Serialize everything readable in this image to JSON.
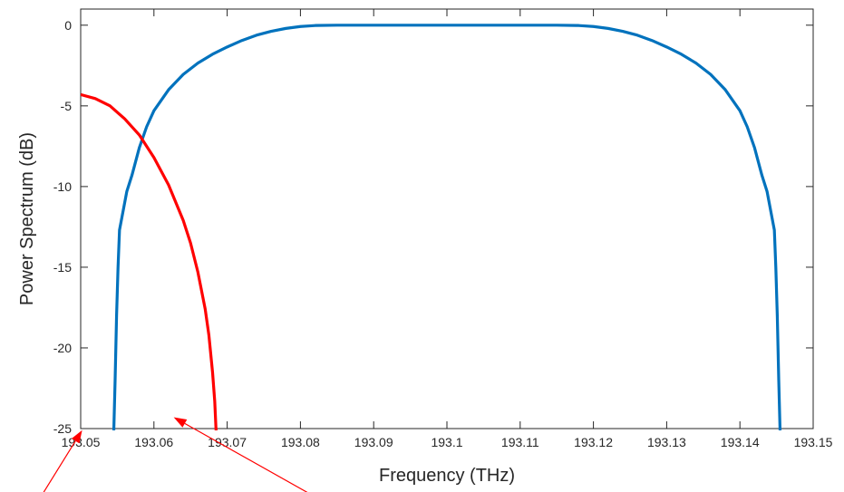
{
  "chart_data": {
    "type": "line",
    "xlabel": "Frequency (THz)",
    "ylabel": "Power Spectrum (dB)",
    "xlim": [
      193.05,
      193.15
    ],
    "ylim": [
      -25,
      1
    ],
    "xticks": [
      193.05,
      193.06,
      193.07,
      193.08,
      193.09,
      193.1,
      193.11,
      193.12,
      193.13,
      193.14,
      193.15
    ],
    "xtick_labels": [
      "193.05",
      "193.06",
      "193.07",
      "193.08",
      "193.09",
      "193.1",
      "193.11",
      "193.12",
      "193.13",
      "193.14",
      "193.15"
    ],
    "yticks": [
      0,
      -5,
      -10,
      -15,
      -20,
      -25
    ],
    "ytick_labels": [
      "0",
      "-5",
      "-10",
      "-15",
      "-20",
      "-25"
    ],
    "grid": false,
    "box": true,
    "series": [
      {
        "color": "#0072BD",
        "points": [
          [
            193.0545,
            -25.5
          ],
          [
            193.0547,
            -22
          ],
          [
            193.0549,
            -18
          ],
          [
            193.0551,
            -15
          ],
          [
            193.0553,
            -12.7
          ],
          [
            193.0558,
            -11.5
          ],
          [
            193.0563,
            -10.3
          ],
          [
            193.057,
            -9.3
          ],
          [
            193.058,
            -7.6
          ],
          [
            193.059,
            -6.3
          ],
          [
            193.06,
            -5.3
          ],
          [
            193.062,
            -4.0
          ],
          [
            193.064,
            -3.05
          ],
          [
            193.066,
            -2.35
          ],
          [
            193.068,
            -1.8
          ],
          [
            193.07,
            -1.35
          ],
          [
            193.072,
            -0.95
          ],
          [
            193.074,
            -0.62
          ],
          [
            193.076,
            -0.38
          ],
          [
            193.078,
            -0.2
          ],
          [
            193.08,
            -0.08
          ],
          [
            193.082,
            -0.02
          ],
          [
            193.085,
            0.0
          ],
          [
            193.09,
            0.0
          ],
          [
            193.095,
            0.0
          ],
          [
            193.1,
            0.0
          ],
          [
            193.105,
            0.0
          ],
          [
            193.11,
            0.0
          ],
          [
            193.115,
            0.0
          ],
          [
            193.118,
            -0.02
          ],
          [
            193.12,
            -0.08
          ],
          [
            193.122,
            -0.2
          ],
          [
            193.124,
            -0.38
          ],
          [
            193.126,
            -0.62
          ],
          [
            193.128,
            -0.95
          ],
          [
            193.13,
            -1.35
          ],
          [
            193.132,
            -1.8
          ],
          [
            193.134,
            -2.35
          ],
          [
            193.136,
            -3.05
          ],
          [
            193.138,
            -4.0
          ],
          [
            193.14,
            -5.3
          ],
          [
            193.141,
            -6.3
          ],
          [
            193.142,
            -7.6
          ],
          [
            193.143,
            -9.3
          ],
          [
            193.1437,
            -10.3
          ],
          [
            193.1442,
            -11.5
          ],
          [
            193.1447,
            -12.7
          ],
          [
            193.1449,
            -15
          ],
          [
            193.1451,
            -18
          ],
          [
            193.1453,
            -22
          ],
          [
            193.1455,
            -25.5
          ]
        ]
      },
      {
        "color": "#FF0000",
        "points": [
          [
            193.05,
            -4.3
          ],
          [
            193.052,
            -4.55
          ],
          [
            193.054,
            -5.0
          ],
          [
            193.056,
            -5.8
          ],
          [
            193.058,
            -6.8
          ],
          [
            193.06,
            -8.2
          ],
          [
            193.062,
            -9.9
          ],
          [
            193.064,
            -12.1
          ],
          [
            193.065,
            -13.5
          ],
          [
            193.066,
            -15.3
          ],
          [
            193.067,
            -17.6
          ],
          [
            193.0675,
            -19.2
          ],
          [
            193.068,
            -21.5
          ],
          [
            193.0683,
            -23.3
          ],
          [
            193.0685,
            -25.3
          ]
        ]
      }
    ],
    "annotations": [
      {
        "type": "arrow",
        "color": "#FF0000",
        "from": [
          193.0431,
          -30.3
        ],
        "to": [
          193.0502,
          -25.1
        ]
      },
      {
        "type": "arrow",
        "color": "#FF0000",
        "from": [
          193.0862,
          -30.3
        ],
        "to": [
          193.0627,
          -24.3
        ]
      }
    ]
  }
}
